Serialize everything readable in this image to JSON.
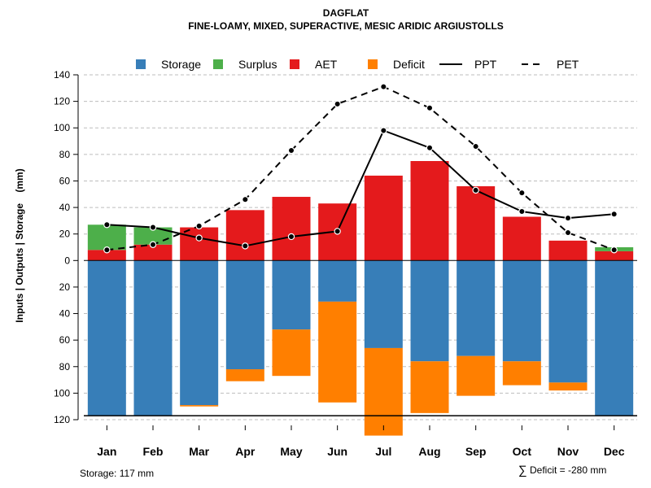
{
  "chart_data": {
    "type": "bar",
    "title": "DAGFLAT",
    "subtitle": "FINE-LOAMY, MIXED, SUPERACTIVE, MESIC ARIDIC ARGIUSTOLLS",
    "ylabel": "Inputs | Outputs | Storage    (mm)",
    "ylim": [
      -120,
      140
    ],
    "yticks": [
      140,
      120,
      100,
      80,
      60,
      40,
      20,
      0,
      -20,
      -40,
      -60,
      -80,
      -100,
      -120
    ],
    "ytick_labels": [
      "140",
      "120",
      "100",
      "80",
      "60",
      "40",
      "20",
      "0",
      "20",
      "40",
      "60",
      "80",
      "100",
      "120"
    ],
    "grid": true,
    "legend_position": "top",
    "categories": [
      "Jan",
      "Feb",
      "Mar",
      "Apr",
      "May",
      "Jun",
      "Jul",
      "Aug",
      "Sep",
      "Oct",
      "Nov",
      "Dec"
    ],
    "legend": [
      {
        "name": "Storage",
        "kind": "box",
        "color": "#377EB8"
      },
      {
        "name": "Surplus",
        "kind": "box",
        "color": "#4DAF4A"
      },
      {
        "name": "AET",
        "kind": "box",
        "color": "#E41A1C"
      },
      {
        "name": "Deficit",
        "kind": "box",
        "color": "#FF7F00"
      },
      {
        "name": "PPT",
        "kind": "solid",
        "color": "#000000"
      },
      {
        "name": "PET",
        "kind": "dashed",
        "color": "#000000"
      }
    ],
    "series": [
      {
        "name": "AET",
        "color": "#E41A1C",
        "values": [
          8,
          12,
          25,
          38,
          48,
          43,
          64,
          75,
          56,
          33,
          15,
          7
        ]
      },
      {
        "name": "Surplus",
        "color": "#4DAF4A",
        "values": [
          19,
          13,
          0,
          0,
          0,
          0,
          0,
          0,
          0,
          0,
          0,
          3
        ]
      },
      {
        "name": "Storage",
        "color": "#377EB8",
        "values": [
          117,
          117,
          109,
          82,
          52,
          31,
          66,
          76,
          72,
          76,
          92,
          117
        ]
      },
      {
        "name": "Deficit",
        "color": "#FF7F00",
        "values": [
          0,
          0,
          1,
          9,
          35,
          76,
          66,
          39,
          30,
          18,
          6,
          0
        ]
      },
      {
        "name": "PPT",
        "color": "#000000",
        "values": [
          27,
          25,
          17,
          11,
          18,
          22,
          98,
          85,
          53,
          37,
          32,
          35
        ]
      },
      {
        "name": "PET",
        "color": "#000000",
        "values": [
          8,
          12,
          26,
          46,
          83,
          118,
          131,
          115,
          86,
          51,
          21,
          8
        ]
      }
    ],
    "storage_capacity": 117,
    "footer_storage": "Storage: 117 mm",
    "footer_deficit_symbol": "∑",
    "footer_deficit": "Deficit = -280 mm"
  }
}
